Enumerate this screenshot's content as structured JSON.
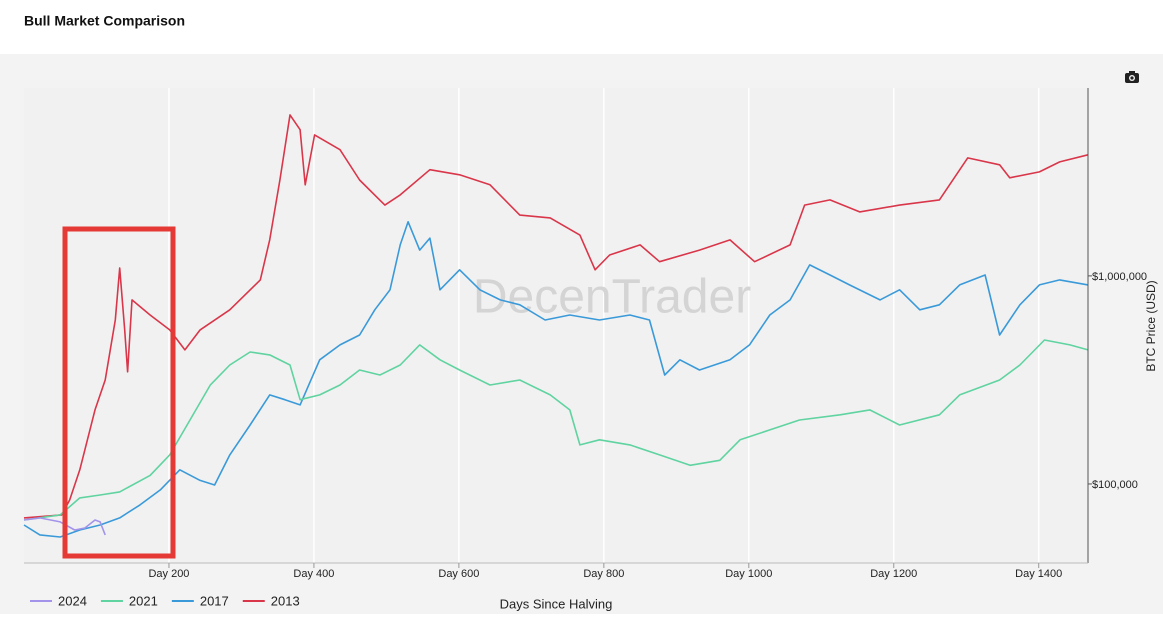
{
  "header": {
    "title": "Bull Market Comparison"
  },
  "chart_data": {
    "type": "line",
    "x_label": "Days Since Halving",
    "y_label": "BTC Price (USD)",
    "watermark": "DecenTrader",
    "log_y": true,
    "grid": "x",
    "legend": "bottom-left",
    "xlim": [
      0,
      1468
    ],
    "xticks": [
      {
        "value": 200,
        "label": "Day 200"
      },
      {
        "value": 400,
        "label": "Day 400"
      },
      {
        "value": 600,
        "label": "Day 600"
      },
      {
        "value": 800,
        "label": "Day 800"
      },
      {
        "value": 1000,
        "label": "Day 1000"
      },
      {
        "value": 1200,
        "label": "Day 1200"
      },
      {
        "value": 1400,
        "label": "Day 1400"
      }
    ],
    "ylim": [
      41700,
      8000000
    ],
    "yticks": [
      {
        "value": 100000,
        "label": "$100,000"
      },
      {
        "value": 1000000,
        "label": "$1,000,000"
      }
    ],
    "series": [
      {
        "name": "2024",
        "color": "#a393eb",
        "x": [
          0,
          22,
          50,
          70,
          84,
          98,
          105,
          112
        ],
        "values": [
          67100,
          68700,
          65700,
          60100,
          61400,
          67100,
          65700,
          56900
        ]
      },
      {
        "name": "2021",
        "color": "#5fd3a0",
        "x": [
          0,
          50,
          77,
          105,
          132,
          174,
          201,
          229,
          257,
          284,
          312,
          339,
          367,
          381,
          408,
          436,
          463,
          491,
          519,
          546,
          574,
          601,
          643,
          684,
          726,
          753,
          767,
          794,
          836,
          877,
          919,
          960,
          988,
          1029,
          1070,
          1126,
          1167,
          1208,
          1263,
          1291,
          1346,
          1374,
          1408,
          1443,
          1468
        ],
        "values": [
          67100,
          71000,
          85700,
          88500,
          91600,
          110000,
          138000,
          203000,
          299000,
          373000,
          431000,
          417000,
          373000,
          254000,
          268000,
          299000,
          353000,
          334000,
          373000,
          466000,
          395000,
          353000,
          299000,
          316000,
          268000,
          227000,
          154000,
          163000,
          154000,
          138000,
          123000,
          130000,
          163000,
          182000,
          203000,
          215000,
          227000,
          192000,
          215000,
          268000,
          316000,
          373000,
          492000,
          466000,
          441000
        ]
      },
      {
        "name": "2017",
        "color": "#3a9ad9",
        "x": [
          0,
          22,
          50,
          77,
          105,
          132,
          160,
          188,
          215,
          243,
          263,
          284,
          312,
          339,
          360,
          381,
          408,
          436,
          463,
          484,
          505,
          519,
          530,
          546,
          560,
          574,
          601,
          629,
          657,
          684,
          719,
          753,
          794,
          836,
          863,
          884,
          905,
          932,
          974,
          1001,
          1029,
          1057,
          1084,
          1112,
          1139,
          1181,
          1208,
          1236,
          1263,
          1291,
          1326,
          1346,
          1374,
          1401,
          1429,
          1468
        ],
        "values": [
          63500,
          56900,
          55600,
          60100,
          63500,
          68700,
          79300,
          93600,
          117000,
          104000,
          98900,
          138000,
          192000,
          268000,
          254000,
          240000,
          395000,
          466000,
          520000,
          687000,
          857000,
          1410000,
          1820000,
          1330000,
          1520000,
          857000,
          1070000,
          857000,
          767000,
          726000,
          614000,
          649000,
          614000,
          649000,
          614000,
          334000,
          395000,
          353000,
          395000,
          466000,
          649000,
          767000,
          1130000,
          1010000,
          905000,
          767000,
          857000,
          687000,
          726000,
          905000,
          1010000,
          520000,
          726000,
          905000,
          957000,
          905000
        ]
      },
      {
        "name": "2013",
        "color": "#d9364a",
        "x": [
          0,
          52,
          63,
          77,
          98,
          112,
          126,
          132,
          139,
          143,
          149,
          174,
          201,
          222,
          243,
          284,
          326,
          339,
          353,
          367,
          381,
          388,
          401,
          436,
          463,
          498,
          519,
          560,
          601,
          643,
          684,
          726,
          767,
          788,
          808,
          850,
          877,
          932,
          974,
          1008,
          1057,
          1077,
          1112,
          1153,
          1208,
          1263,
          1302,
          1346,
          1360,
          1401,
          1429,
          1468
        ],
        "values": [
          68700,
          71000,
          83800,
          117000,
          227000,
          316000,
          614000,
          1090000,
          550000,
          346000,
          767000,
          649000,
          550000,
          441000,
          550000,
          687000,
          957000,
          1490000,
          2890000,
          5940000,
          5040000,
          2740000,
          4760000,
          4040000,
          2890000,
          2190000,
          2450000,
          3240000,
          3060000,
          2740000,
          1960000,
          1900000,
          1570000,
          1070000,
          1260000,
          1410000,
          1170000,
          1330000,
          1490000,
          1170000,
          1410000,
          2190000,
          2320000,
          2030000,
          2190000,
          2320000,
          3690000,
          3420000,
          2960000,
          3160000,
          3530000,
          3820000
        ]
      }
    ]
  }
}
